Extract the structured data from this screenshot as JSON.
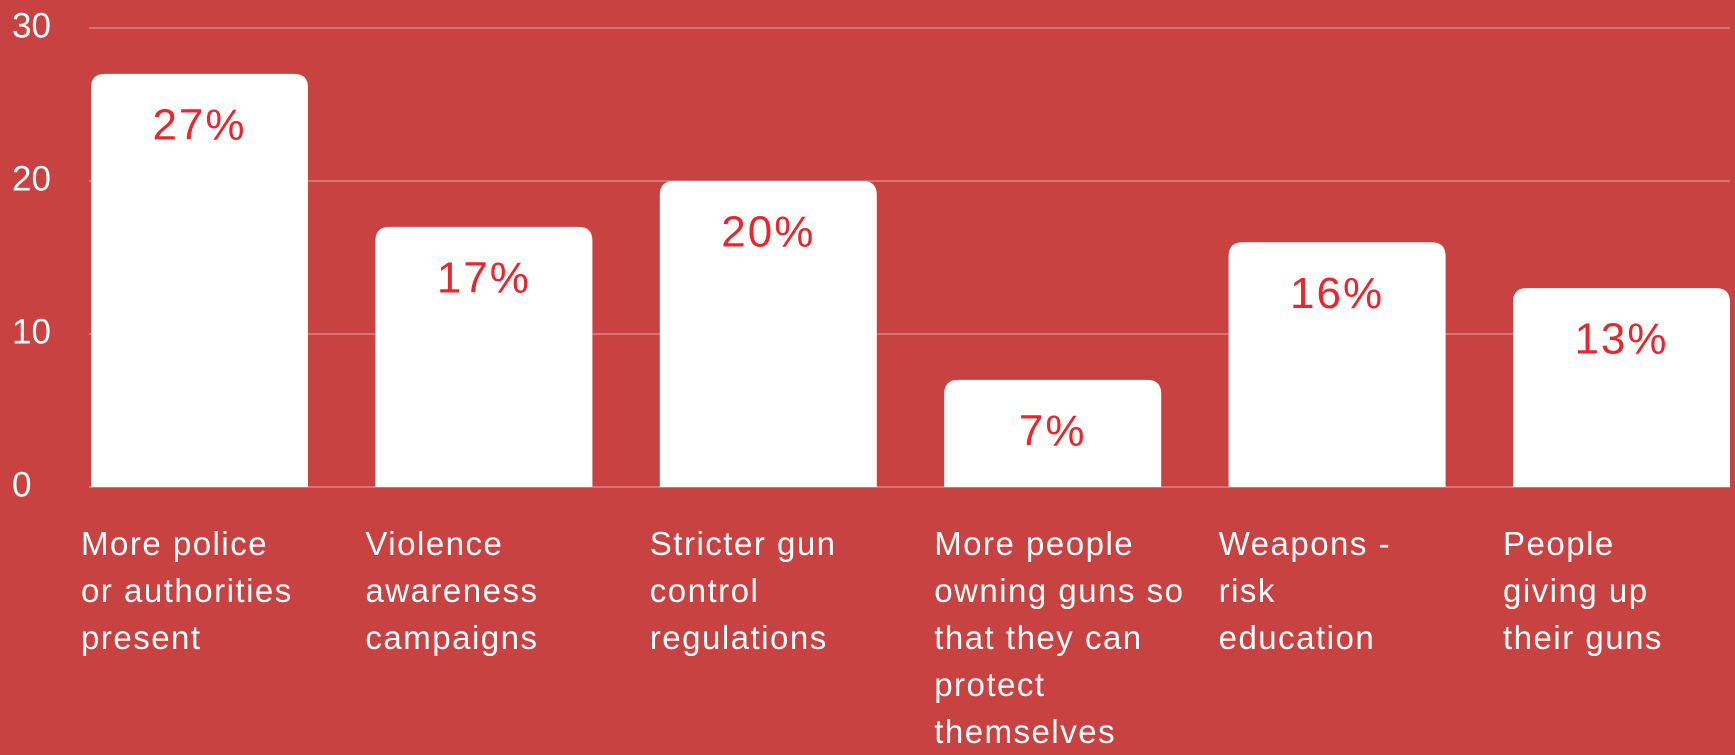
{
  "chart_data": {
    "type": "bar",
    "categories": [
      "More police\nor authorities\npresent",
      "Violence\nawareness\ncampaigns",
      "Stricter gun\ncontrol\nregulations",
      "More people\nowning guns so\nthat they can\nprotect\nthemselves",
      "Weapons -\nrisk\neducation",
      "People\ngiving up\ntheir guns"
    ],
    "values": [
      27,
      17,
      20,
      7,
      16,
      13
    ],
    "value_labels": [
      "27%",
      "17%",
      "20%",
      "7%",
      "16%",
      "13%"
    ],
    "color": "#ffffff",
    "ylim": [
      0,
      30
    ],
    "yticks": [
      0,
      10,
      20,
      30
    ],
    "grid": true
  }
}
